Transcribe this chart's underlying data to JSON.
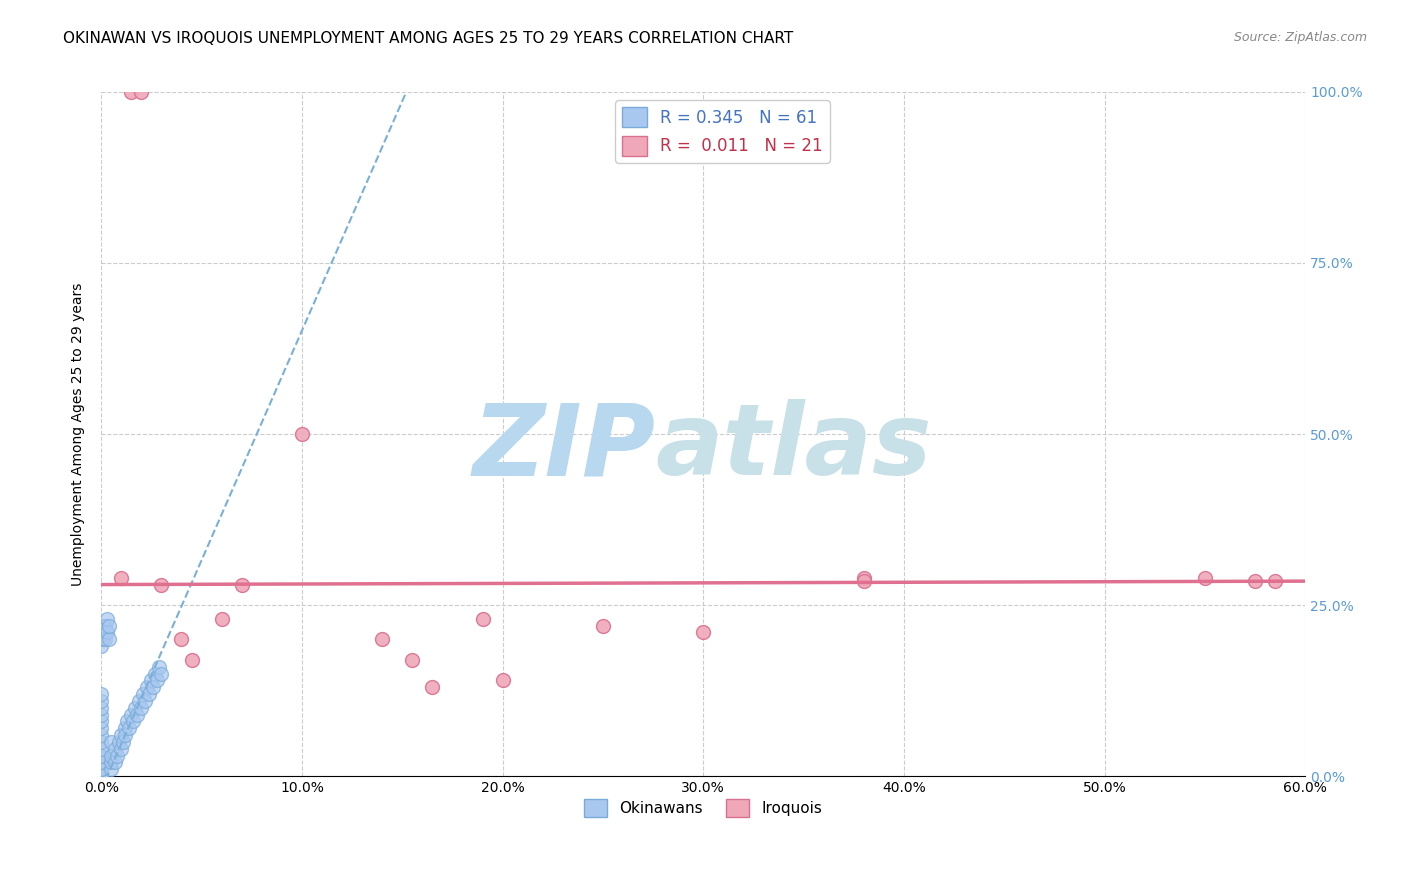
{
  "title": "OKINAWAN VS IROQUOIS UNEMPLOYMENT AMONG AGES 25 TO 29 YEARS CORRELATION CHART",
  "source": "Source: ZipAtlas.com",
  "ylabel": "Unemployment Among Ages 25 to 29 years",
  "xlim": [
    0.0,
    0.6
  ],
  "ylim": [
    0.0,
    1.0
  ],
  "xticks": [
    0.0,
    0.1,
    0.2,
    0.3,
    0.4,
    0.5,
    0.6
  ],
  "xticklabels": [
    "0.0%",
    "10.0%",
    "20.0%",
    "30.0%",
    "40.0%",
    "50.0%",
    "60.0%"
  ],
  "yticks": [
    0.0,
    0.25,
    0.5,
    0.75,
    1.0
  ],
  "yticklabels": [
    "0.0%",
    "25.0%",
    "50.0%",
    "75.0%",
    "100.0%"
  ],
  "okinawan_color": "#a8c8f0",
  "okinawan_edge": "#7aaad8",
  "iroquois_color": "#f0a8b8",
  "iroquois_edge": "#d87090",
  "okinawan_R": 0.345,
  "okinawan_N": 61,
  "iroquois_R": 0.011,
  "iroquois_N": 21,
  "watermark": "ZIPatlas",
  "watermark_color_zip": "#b8d8f0",
  "watermark_color_atlas": "#c8e0e8",
  "legend_label_okinawan": "Okinawans",
  "legend_label_iroquois": "Iroquois",
  "okinawan_x": [
    0.0,
    0.0,
    0.0,
    0.0,
    0.0,
    0.0,
    0.0,
    0.0,
    0.0,
    0.0,
    0.0,
    0.0,
    0.0,
    0.0,
    0.0,
    0.0,
    0.0,
    0.0,
    0.0,
    0.0,
    0.005,
    0.005,
    0.005,
    0.005,
    0.007,
    0.007,
    0.008,
    0.009,
    0.01,
    0.01,
    0.011,
    0.012,
    0.012,
    0.013,
    0.014,
    0.015,
    0.016,
    0.017,
    0.018,
    0.019,
    0.02,
    0.021,
    0.022,
    0.023,
    0.024,
    0.025,
    0.026,
    0.027,
    0.028,
    0.029,
    0.03,
    0.0,
    0.0,
    0.001,
    0.001,
    0.002,
    0.002,
    0.003,
    0.003,
    0.004,
    0.004
  ],
  "okinawan_y": [
    0.0,
    0.0,
    0.0,
    0.0,
    0.0,
    0.01,
    0.01,
    0.02,
    0.02,
    0.03,
    0.03,
    0.04,
    0.05,
    0.06,
    0.07,
    0.08,
    0.09,
    0.1,
    0.11,
    0.12,
    0.01,
    0.02,
    0.03,
    0.05,
    0.02,
    0.04,
    0.03,
    0.05,
    0.04,
    0.06,
    0.05,
    0.07,
    0.06,
    0.08,
    0.07,
    0.09,
    0.08,
    0.1,
    0.09,
    0.11,
    0.1,
    0.12,
    0.11,
    0.13,
    0.12,
    0.14,
    0.13,
    0.15,
    0.14,
    0.16,
    0.15,
    0.19,
    0.21,
    0.2,
    0.22,
    0.2,
    0.22,
    0.21,
    0.23,
    0.2,
    0.22
  ],
  "iroquois_x": [
    0.01,
    0.015,
    0.02,
    0.03,
    0.04,
    0.045,
    0.06,
    0.07,
    0.1,
    0.14,
    0.155,
    0.165,
    0.19,
    0.2,
    0.25,
    0.3,
    0.38,
    0.38,
    0.55,
    0.575,
    0.585
  ],
  "iroquois_y": [
    0.29,
    1.0,
    1.0,
    0.28,
    0.2,
    0.17,
    0.23,
    0.28,
    0.5,
    0.2,
    0.17,
    0.13,
    0.23,
    0.14,
    0.22,
    0.21,
    0.29,
    0.285,
    0.29,
    0.285,
    0.285
  ],
  "blue_line_x": [
    0.0,
    0.155
  ],
  "blue_line_y": [
    -0.02,
    1.02
  ],
  "pink_line_x": [
    0.0,
    0.6
  ],
  "pink_line_y": [
    0.28,
    0.285
  ],
  "title_fontsize": 11,
  "axis_label_fontsize": 10,
  "tick_fontsize": 10,
  "legend_fontsize": 11,
  "marker_size": 100,
  "background_color": "#ffffff",
  "grid_color": "#cccccc",
  "right_tick_color": "#5b9bd5",
  "blue_line_color": "#7ab0d8",
  "pink_line_color": "#e07090"
}
